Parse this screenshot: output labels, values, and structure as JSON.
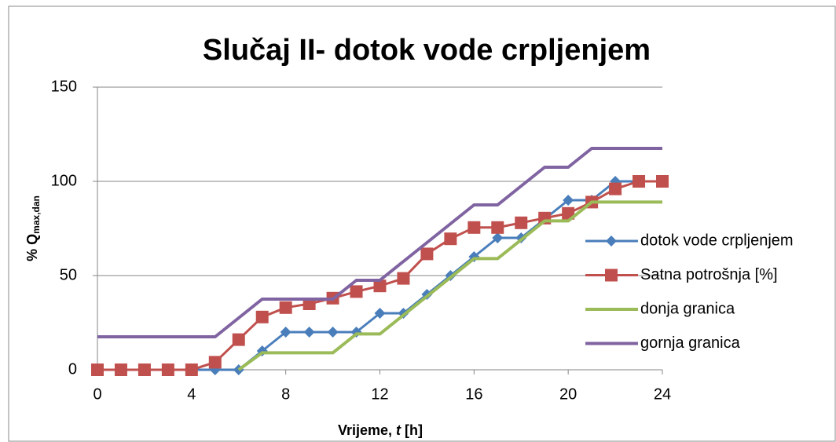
{
  "chart_data": {
    "type": "line",
    "title": "Slučaj II- dotok vode crpljenjem",
    "x_label": [
      "Vrijeme, ",
      "t",
      " [h]"
    ],
    "y_label": [
      "% Q",
      "max,dan"
    ],
    "x": [
      0,
      1,
      2,
      3,
      4,
      5,
      6,
      7,
      8,
      9,
      10,
      11,
      12,
      13,
      14,
      15,
      16,
      17,
      18,
      19,
      20,
      21,
      22,
      23,
      24
    ],
    "xlim": [
      0,
      24
    ],
    "xticks": [
      0,
      4,
      8,
      12,
      16,
      20,
      24
    ],
    "ylim": [
      0,
      150
    ],
    "yticks": [
      0,
      50,
      100,
      150
    ],
    "grid": true,
    "legend": "right",
    "series": [
      {
        "name": "dotok vode crpljenjem",
        "color": "#4a7ebb",
        "marker": "diamond",
        "values": [
          0,
          0,
          0,
          0,
          0,
          0,
          0,
          10,
          20,
          20,
          20,
          20,
          30,
          30,
          40,
          50,
          60,
          70,
          70,
          80,
          90,
          90,
          100,
          100,
          100
        ]
      },
      {
        "name": "Satna potrošnja [%]",
        "color": "#c0504d",
        "marker": "square",
        "values": [
          0,
          0,
          0,
          0,
          0,
          4,
          16,
          28,
          33,
          35,
          38,
          41.5,
          44.5,
          48.5,
          61.5,
          69.5,
          75.5,
          75.5,
          78,
          80.5,
          83,
          89,
          96,
          100,
          100
        ]
      },
      {
        "name": "donja granica",
        "color": "#9bbb59",
        "values": [
          null,
          null,
          null,
          null,
          null,
          null,
          0,
          9,
          9,
          9,
          9,
          19,
          19,
          29,
          39,
          49,
          59,
          59,
          69,
          79,
          79,
          89,
          89,
          89,
          89
        ]
      },
      {
        "name": "gornja granica",
        "color": "#8064a2",
        "values": [
          17.5,
          17.5,
          17.5,
          17.5,
          17.5,
          17.5,
          27.5,
          37.5,
          37.5,
          37.5,
          37.5,
          47.5,
          47.5,
          57.5,
          67.5,
          77.5,
          87.5,
          87.5,
          97.5,
          107.5,
          107.5,
          117.5,
          117.5,
          117.5,
          117.5
        ]
      }
    ]
  }
}
